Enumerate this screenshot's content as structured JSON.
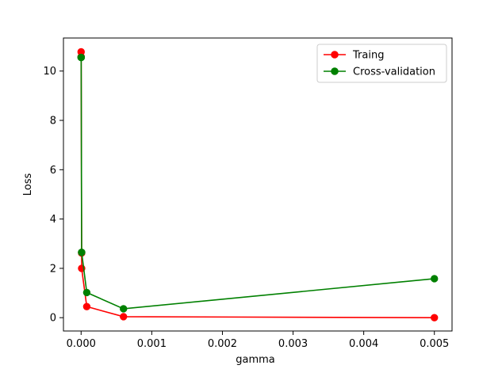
{
  "chart_data": {
    "type": "line",
    "title": "",
    "xlabel": "gamma",
    "ylabel": "Loss",
    "xlim": [
      -0.00025,
      0.00525
    ],
    "ylim": [
      -0.54,
      11.34
    ],
    "x_ticks": [
      0.0,
      0.001,
      0.002,
      0.003,
      0.004,
      0.005
    ],
    "x_tick_labels": [
      "0.000",
      "0.001",
      "0.002",
      "0.003",
      "0.004",
      "0.005"
    ],
    "y_ticks": [
      0,
      2,
      4,
      6,
      8,
      10
    ],
    "y_tick_labels": [
      "0",
      "2",
      "4",
      "6",
      "8",
      "10"
    ],
    "grid": false,
    "legend": "top-right",
    "series": [
      {
        "name": "Traing",
        "color": "#ff0000",
        "x": [
          0.0,
          1e-06,
          7.5e-06,
          7.5e-06,
          8e-05,
          0.0006,
          0.005
        ],
        "y": [
          10.78,
          10.58,
          2.62,
          2.0,
          0.45,
          0.04,
          0.0
        ]
      },
      {
        "name": "Cross-validation",
        "color": "#008000",
        "x": [
          0.0,
          1e-06,
          7.5e-06,
          7.5e-06,
          8e-05,
          0.0006,
          0.005
        ],
        "y": [
          10.55,
          10.55,
          2.65,
          2.65,
          1.02,
          0.36,
          1.58
        ]
      }
    ]
  }
}
